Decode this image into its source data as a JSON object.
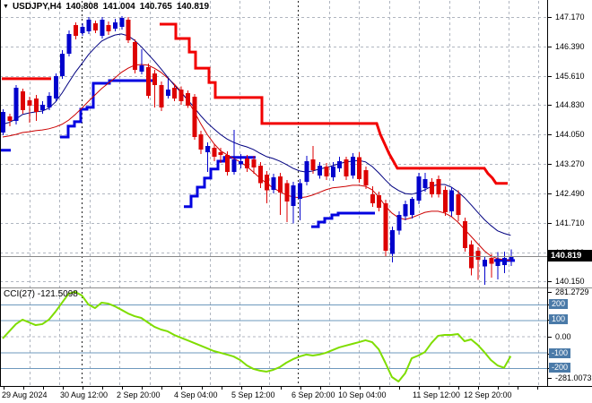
{
  "header": {
    "symbol": "USDJPY,H4",
    "open": "140.808",
    "high": "141.004",
    "low": "140.765",
    "close": "140.819"
  },
  "icons": {
    "symbol_marker": "▼"
  },
  "price_axis": {
    "current_label": "140.819",
    "labels": [
      [
        "147.170",
        19
      ],
      [
        "146.390",
        52
      ],
      [
        "145.610",
        85
      ],
      [
        "144.830",
        117
      ],
      [
        "144.050",
        150
      ],
      [
        "143.270",
        183
      ],
      [
        "142.490",
        216
      ],
      [
        "141.710",
        249
      ],
      [
        "140.930",
        282
      ],
      [
        "140.150",
        314
      ]
    ]
  },
  "time_axis": {
    "labels": [
      [
        "29 Aug 2024",
        2
      ],
      [
        "30 Aug 12:00",
        67
      ],
      [
        "2 Sep 20:00",
        130
      ],
      [
        "4 Sep 04:00",
        194
      ],
      [
        "5 Sep 12:00",
        258
      ],
      [
        "6 Sep 20:00",
        325
      ],
      [
        "10 Sep 04:00",
        377
      ],
      [
        "11 Sep 12:00",
        460
      ],
      [
        "12 Sep 20:00",
        517
      ]
    ]
  },
  "indicator_panel": {
    "label": "CCI(27) -121.5098",
    "plain_labels": [
      [
        "281.2729",
        326
      ],
      [
        "0.00",
        376
      ],
      [
        "-281.0073",
        422
      ]
    ],
    "badge_labels": [
      [
        "200",
        340
      ],
      [
        "100",
        357
      ],
      [
        "-100",
        395
      ],
      [
        "-200",
        411
      ]
    ]
  },
  "colors": {
    "bull": "#0202cc",
    "bear": "#dd0202",
    "ma_fast": "#000080",
    "ma_slow": "#cc0000",
    "trend_resistance": "#f20000",
    "trend_support": "#0202e0",
    "cci_line": "#7fdd00",
    "cci_level": "#6e99bd",
    "badge_bg": "#4a7aa8",
    "grid": "#b0b6c0",
    "grid_dark": "#222222",
    "separator": "#8b8b8b",
    "price_line": "#888888",
    "frame": "#000000"
  },
  "chart_data": {
    "type": "candlestick",
    "title": "USDJPY,H4",
    "timeframe": "H4",
    "ylabel": "price",
    "ylim": [
      140.15,
      147.17
    ],
    "grid": true,
    "current_price": 140.819,
    "ohlc": [
      [
        144.1,
        144.72,
        144.03,
        144.65
      ],
      [
        144.53,
        144.6,
        144.27,
        144.41
      ],
      [
        144.41,
        145.36,
        144.32,
        145.29
      ],
      [
        145.2,
        145.27,
        144.6,
        144.7
      ],
      [
        144.96,
        145.05,
        144.36,
        144.82
      ],
      [
        145.0,
        145.1,
        144.41,
        144.65
      ],
      [
        144.7,
        144.93,
        144.6,
        144.84
      ],
      [
        144.77,
        145.17,
        144.7,
        145.08
      ],
      [
        145.0,
        145.67,
        144.93,
        145.6
      ],
      [
        145.6,
        146.29,
        145.53,
        146.19
      ],
      [
        146.19,
        146.81,
        146.12,
        146.72
      ],
      [
        146.96,
        147.03,
        146.58,
        146.67
      ],
      [
        146.74,
        147.0,
        146.67,
        146.91
      ],
      [
        146.79,
        147.17,
        146.72,
        147.1
      ],
      [
        147.0,
        147.07,
        146.74,
        146.81
      ],
      [
        146.67,
        147.17,
        146.6,
        147.1
      ],
      [
        146.96,
        147.05,
        146.69,
        146.79
      ],
      [
        146.86,
        147.12,
        146.79,
        147.03
      ],
      [
        146.91,
        147.19,
        146.84,
        147.15
      ],
      [
        147.1,
        147.17,
        146.48,
        146.55
      ],
      [
        146.5,
        146.58,
        145.67,
        145.77
      ],
      [
        145.72,
        146.31,
        145.65,
        145.89
      ],
      [
        145.84,
        145.93,
        145.0,
        145.08
      ],
      [
        145.67,
        145.77,
        144.77,
        145.36
      ],
      [
        145.36,
        145.46,
        144.67,
        144.77
      ],
      [
        145.08,
        145.53,
        145.0,
        145.24
      ],
      [
        145.29,
        145.39,
        144.93,
        145.0
      ],
      [
        145.24,
        145.32,
        144.84,
        144.93
      ],
      [
        145.15,
        145.22,
        144.75,
        144.82
      ],
      [
        145.05,
        145.12,
        143.91,
        143.98
      ],
      [
        144.05,
        144.15,
        143.53,
        143.65
      ],
      [
        143.58,
        143.84,
        143.05,
        143.74
      ],
      [
        143.7,
        143.79,
        143.34,
        143.46
      ],
      [
        143.58,
        143.7,
        143.29,
        143.51
      ],
      [
        143.51,
        143.6,
        142.96,
        143.05
      ],
      [
        143.05,
        144.17,
        142.98,
        143.39
      ],
      [
        143.25,
        143.53,
        143.15,
        143.34
      ],
      [
        143.41,
        143.51,
        143.05,
        143.15
      ],
      [
        143.39,
        143.48,
        143.01,
        143.17
      ],
      [
        143.22,
        143.32,
        142.63,
        142.75
      ],
      [
        142.98,
        143.08,
        142.22,
        142.56
      ],
      [
        142.58,
        143.01,
        142.48,
        142.91
      ],
      [
        142.93,
        143.03,
        141.91,
        142.51
      ],
      [
        142.75,
        142.84,
        141.72,
        142.27
      ],
      [
        142.15,
        142.79,
        141.68,
        142.7
      ],
      [
        142.34,
        142.86,
        141.77,
        142.75
      ],
      [
        142.79,
        143.48,
        142.7,
        143.34
      ],
      [
        143.39,
        143.74,
        143.01,
        143.1
      ],
      [
        142.96,
        143.32,
        142.87,
        143.22
      ],
      [
        143.2,
        143.29,
        142.84,
        142.93
      ],
      [
        142.91,
        143.32,
        142.82,
        143.2
      ],
      [
        143.15,
        143.46,
        143.05,
        143.34
      ],
      [
        143.39,
        143.46,
        142.84,
        142.93
      ],
      [
        142.96,
        143.55,
        142.87,
        143.46
      ],
      [
        143.44,
        143.58,
        142.77,
        142.86
      ],
      [
        143.1,
        143.2,
        142.6,
        142.7
      ],
      [
        142.46,
        142.67,
        142.12,
        142.22
      ],
      [
        142.44,
        142.53,
        142.01,
        142.1
      ],
      [
        142.22,
        142.32,
        140.8,
        140.96
      ],
      [
        140.87,
        141.6,
        140.65,
        141.51
      ],
      [
        141.49,
        142.01,
        141.39,
        141.91
      ],
      [
        141.87,
        142.29,
        141.77,
        142.2
      ],
      [
        141.91,
        142.39,
        141.82,
        142.34
      ],
      [
        142.29,
        143.03,
        142.2,
        142.93
      ],
      [
        142.63,
        143.03,
        142.53,
        142.86
      ],
      [
        142.79,
        142.89,
        142.37,
        142.46
      ],
      [
        142.86,
        142.96,
        142.37,
        142.46
      ],
      [
        142.58,
        142.67,
        141.89,
        141.98
      ],
      [
        142.01,
        142.65,
        141.87,
        142.56
      ],
      [
        142.46,
        142.56,
        141.75,
        141.91
      ],
      [
        141.75,
        141.84,
        140.94,
        141.03
      ],
      [
        141.13,
        141.23,
        140.3,
        140.49
      ],
      [
        140.96,
        141.06,
        140.18,
        140.72
      ],
      [
        140.54,
        140.82,
        140.06,
        140.72
      ],
      [
        140.77,
        140.87,
        140.25,
        140.61
      ],
      [
        140.56,
        140.92,
        140.2,
        140.75
      ],
      [
        140.58,
        140.94,
        140.37,
        140.77
      ],
      [
        140.73,
        141.0,
        140.56,
        140.819
      ]
    ],
    "ma_fast": [
      144.32,
      144.37,
      144.46,
      144.58,
      144.62,
      144.65,
      144.67,
      144.75,
      144.91,
      145.15,
      145.43,
      145.7,
      145.93,
      146.17,
      146.36,
      146.53,
      146.62,
      146.69,
      146.72,
      146.67,
      146.55,
      146.38,
      146.19,
      146.0,
      145.79,
      145.57,
      145.36,
      145.17,
      144.98,
      144.77,
      144.55,
      144.36,
      144.2,
      144.05,
      143.93,
      143.84,
      143.77,
      143.72,
      143.65,
      143.55,
      143.46,
      143.41,
      143.34,
      143.25,
      143.15,
      143.08,
      143.05,
      143.08,
      143.13,
      143.17,
      143.22,
      143.27,
      143.32,
      143.34,
      143.36,
      143.32,
      143.2,
      143.03,
      142.84,
      142.67,
      142.56,
      142.48,
      142.46,
      142.51,
      142.58,
      142.67,
      142.72,
      142.72,
      142.65,
      142.53,
      142.37,
      142.18,
      141.98,
      141.79,
      141.63,
      141.49,
      141.42,
      141.37
    ],
    "ma_slow": [
      143.98,
      144.01,
      144.05,
      144.1,
      144.12,
      144.15,
      144.17,
      144.2,
      144.25,
      144.32,
      144.43,
      144.58,
      144.75,
      144.93,
      145.1,
      145.27,
      145.41,
      145.55,
      145.7,
      145.81,
      145.89,
      145.91,
      145.89,
      145.81,
      145.7,
      145.55,
      145.39,
      145.2,
      144.96,
      144.67,
      144.34,
      144.05,
      143.81,
      143.62,
      143.51,
      143.41,
      143.32,
      143.2,
      143.05,
      142.89,
      142.75,
      142.63,
      142.53,
      142.44,
      142.39,
      142.37,
      142.39,
      142.44,
      142.51,
      142.58,
      142.63,
      142.65,
      142.67,
      142.7,
      142.7,
      142.67,
      142.58,
      142.39,
      142.15,
      141.96,
      141.84,
      141.79,
      141.84,
      141.91,
      141.98,
      142.01,
      142.01,
      141.96,
      141.87,
      141.72,
      141.53,
      141.34,
      141.15,
      140.96,
      140.82,
      140.75,
      140.72,
      140.7
    ],
    "resistance_segments": [
      [
        [
          2,
          145.53
        ],
        [
          57,
          145.53
        ]
      ],
      [
        [
          178,
          146.98
        ],
        [
          196,
          146.98
        ],
        [
          196,
          146.6
        ],
        [
          211,
          146.6
        ],
        [
          211,
          146.24
        ],
        [
          218,
          146.24
        ],
        [
          218,
          145.81
        ],
        [
          233,
          145.81
        ],
        [
          233,
          145.43
        ],
        [
          240,
          145.43
        ],
        [
          240,
          145.03
        ],
        [
          292,
          145.03
        ],
        [
          292,
          144.34
        ],
        [
          420,
          144.34
        ],
        [
          424,
          144.05
        ],
        [
          429,
          143.79
        ],
        [
          434,
          143.53
        ],
        [
          439,
          143.32
        ],
        [
          443,
          143.15
        ],
        [
          540,
          143.15
        ],
        [
          544,
          143.01
        ],
        [
          549,
          142.89
        ],
        [
          553,
          142.75
        ],
        [
          566,
          142.75
        ]
      ]
    ],
    "support_segments": [
      [
        [
          0,
          143.63
        ],
        [
          12,
          143.63
        ]
      ],
      [
        [
          67,
          143.98
        ],
        [
          76,
          143.98
        ],
        [
          76,
          144.27
        ],
        [
          83,
          144.27
        ],
        [
          83,
          144.39
        ],
        [
          90,
          144.39
        ],
        [
          90,
          144.72
        ],
        [
          97,
          144.72
        ],
        [
          97,
          144.77
        ],
        [
          104,
          144.77
        ],
        [
          104,
          145.41
        ],
        [
          122,
          145.41
        ],
        [
          122,
          145.48
        ],
        [
          170,
          145.48
        ]
      ],
      [
        [
          205,
          142.13
        ],
        [
          213,
          142.13
        ],
        [
          213,
          142.41
        ],
        [
          220,
          142.41
        ],
        [
          220,
          142.65
        ],
        [
          228,
          142.65
        ],
        [
          228,
          142.89
        ],
        [
          235,
          142.89
        ],
        [
          235,
          143.13
        ],
        [
          243,
          143.13
        ],
        [
          243,
          143.34
        ],
        [
          250,
          143.34
        ],
        [
          250,
          143.44
        ],
        [
          285,
          143.44
        ]
      ],
      [
        [
          347,
          141.6
        ],
        [
          355,
          141.6
        ],
        [
          355,
          141.72
        ],
        [
          362,
          141.72
        ],
        [
          362,
          141.82
        ],
        [
          370,
          141.82
        ],
        [
          370,
          141.91
        ],
        [
          377,
          141.91
        ],
        [
          377,
          141.96
        ],
        [
          418,
          141.96
        ]
      ],
      [
        [
          551,
          140.7
        ],
        [
          574,
          140.7
        ]
      ]
    ],
    "cci": {
      "period": 27,
      "current": -121.5098,
      "max": 281.2729,
      "min": -281.0073,
      "levels": [
        200,
        100,
        -100,
        -200
      ],
      "values": [
        -11,
        34,
        79,
        107,
        90,
        73,
        79,
        107,
        157,
        214,
        270,
        281.27,
        259,
        202,
        180,
        214,
        208,
        191,
        169,
        146,
        129,
        118,
        90,
        62,
        45,
        34,
        11,
        -6,
        -22,
        -39,
        -56,
        -73,
        -90,
        -101,
        -112,
        -124,
        -146,
        -180,
        -202,
        -213,
        -219,
        -208,
        -191,
        -163,
        -141,
        -124,
        -112,
        -118,
        -112,
        -101,
        -84,
        -67,
        -56,
        -45,
        -34,
        -22,
        -34,
        -79,
        -163,
        -253,
        -281.01,
        -230,
        -135,
        -118,
        -96,
        -39,
        6,
        11,
        11,
        17,
        -28,
        -17,
        -51,
        -96,
        -146,
        -180,
        -195,
        -121.51
      ]
    }
  }
}
